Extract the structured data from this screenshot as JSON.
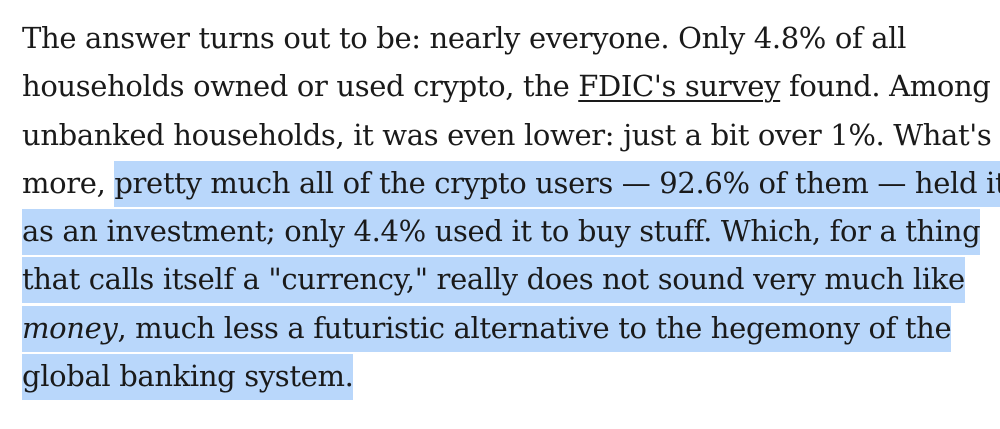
{
  "paragraph": {
    "l1": "The answer turns out to be: nearly everyone. Only 4.8% of all",
    "l2_a": "households owned or used crypto, the ",
    "l2_link": "FDIC's survey",
    "l2_b": " found. Among",
    "l3": "unbanked households, it was even lower: just a bit over 1%. What's",
    "l4_a": "more, ",
    "l4_hl": "pretty much all of the crypto users — 92.6% of them — held it",
    "l5_hl": "as an investment; only 4.4% used it to buy stuff. Which, for a thing",
    "l6_hl": "that calls itself a \"currency,\" really does not sound very much like",
    "l7_em": "money",
    "l7_hl": ", much less a futuristic alternative to the hegemony of the",
    "l8_hl": "global banking system."
  },
  "colors": {
    "text": "#1a1a1a",
    "highlight": "#b9d7fb",
    "background": "#ffffff"
  }
}
